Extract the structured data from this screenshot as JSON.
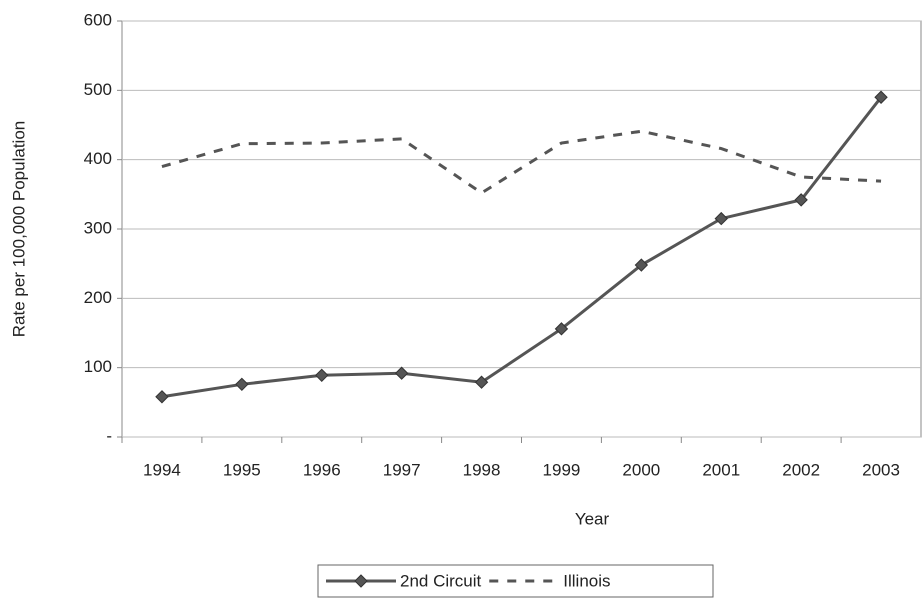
{
  "chart_data": {
    "type": "line",
    "x_label": "Year",
    "y_label": "Rate per 100,000 Population",
    "categories": [
      "1994",
      "1995",
      "1996",
      "1997",
      "1998",
      "1999",
      "2000",
      "2001",
      "2002",
      "2003"
    ],
    "series": [
      {
        "name": "2nd Circuit",
        "color": "#555555",
        "dashed": false,
        "marker": "diamond",
        "values": [
          58,
          76,
          89,
          92,
          79,
          156,
          248,
          315,
          342,
          490
        ]
      },
      {
        "name": "Illinois",
        "color": "#555555",
        "dashed": true,
        "marker": "none",
        "values": [
          390,
          423,
          424,
          430,
          352,
          424,
          441,
          416,
          375,
          369
        ]
      }
    ],
    "ylim": [
      0,
      600
    ],
    "yticks": [
      {
        "value": 0,
        "label": "-"
      },
      100,
      200,
      300,
      400,
      500,
      600
    ],
    "grid": true,
    "legend": "bottom"
  }
}
